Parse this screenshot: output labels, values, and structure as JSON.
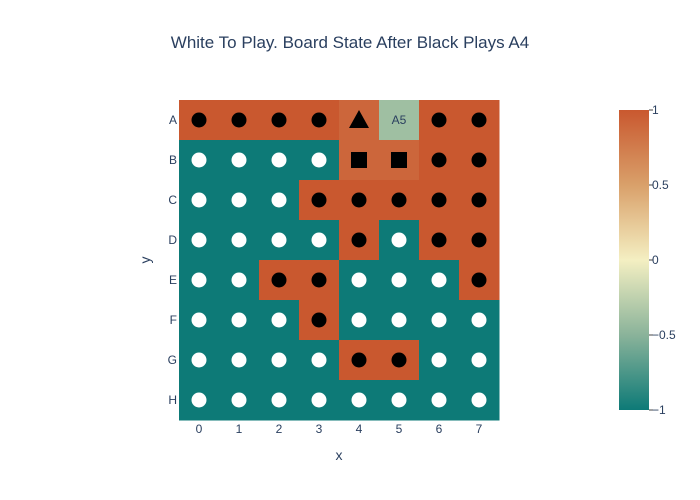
{
  "title": "White To Play. Board State After Black Plays A4",
  "chart_data": {
    "type": "heatmap",
    "title": "White To Play. Board State After Black Plays A4",
    "xlabel": "x",
    "ylabel": "y",
    "x": [
      "0",
      "1",
      "2",
      "3",
      "4",
      "5",
      "6",
      "7"
    ],
    "y": [
      "A",
      "B",
      "C",
      "D",
      "E",
      "F",
      "G",
      "H"
    ],
    "z": [
      [
        1,
        1,
        1,
        1,
        0.9,
        -0.4,
        1,
        1
      ],
      [
        -1,
        -1,
        -1,
        -1,
        0.9,
        0.9,
        1,
        1
      ],
      [
        -1,
        -1,
        -1,
        1,
        1,
        1,
        1,
        1
      ],
      [
        -1,
        -1,
        -1,
        -1,
        1,
        -1,
        1,
        1
      ],
      [
        -1,
        -1,
        1,
        1,
        -1,
        -1,
        -1,
        1
      ],
      [
        -1,
        -1,
        -1,
        1,
        -1,
        -1,
        -1,
        -1
      ],
      [
        -1,
        -1,
        -1,
        -1,
        1,
        1,
        -1,
        -1
      ],
      [
        -1,
        -1,
        -1,
        -1,
        -1,
        -1,
        -1,
        -1
      ]
    ],
    "pieces": [
      [
        "black",
        "black",
        "black",
        "black",
        "black-triangle",
        "",
        "black",
        "black"
      ],
      [
        "white",
        "white",
        "white",
        "white",
        "black-square",
        "black-square",
        "black",
        "black"
      ],
      [
        "white",
        "white",
        "white",
        "black",
        "black",
        "black",
        "black",
        "black"
      ],
      [
        "white",
        "white",
        "white",
        "white",
        "black",
        "white",
        "black",
        "black"
      ],
      [
        "white",
        "white",
        "black",
        "black",
        "white",
        "white",
        "white",
        "black"
      ],
      [
        "white",
        "white",
        "white",
        "black",
        "white",
        "white",
        "white",
        "white"
      ],
      [
        "white",
        "white",
        "white",
        "white",
        "black",
        "black",
        "white",
        "white"
      ],
      [
        "white",
        "white",
        "white",
        "white",
        "white",
        "white",
        "white",
        "white"
      ]
    ],
    "cell_labels": [
      [
        "",
        "",
        "",
        "",
        "",
        "A5",
        "",
        ""
      ],
      [
        "",
        "",
        "",
        "",
        "",
        "",
        "",
        ""
      ],
      [
        "",
        "",
        "",
        "",
        "",
        "",
        "",
        ""
      ],
      [
        "",
        "",
        "",
        "",
        "",
        "",
        "",
        ""
      ],
      [
        "",
        "",
        "",
        "",
        "",
        "",
        "",
        ""
      ],
      [
        "",
        "",
        "",
        "",
        "",
        "",
        "",
        ""
      ],
      [
        "",
        "",
        "",
        "",
        "",
        "",
        "",
        ""
      ],
      [
        "",
        "",
        "",
        "",
        "",
        "",
        "",
        ""
      ]
    ],
    "zlim": [
      -1,
      1
    ],
    "colorscale": [
      "#0d7a77",
      "#8ab39a",
      "#f4efc2",
      "#d9a06a",
      "#c9582f"
    ],
    "colorbar_ticks": [
      "1",
      "0.5",
      "0",
      "−0.5",
      "−1"
    ],
    "colorbar_tick_values": [
      1,
      0.5,
      0,
      -0.5,
      -1
    ]
  }
}
